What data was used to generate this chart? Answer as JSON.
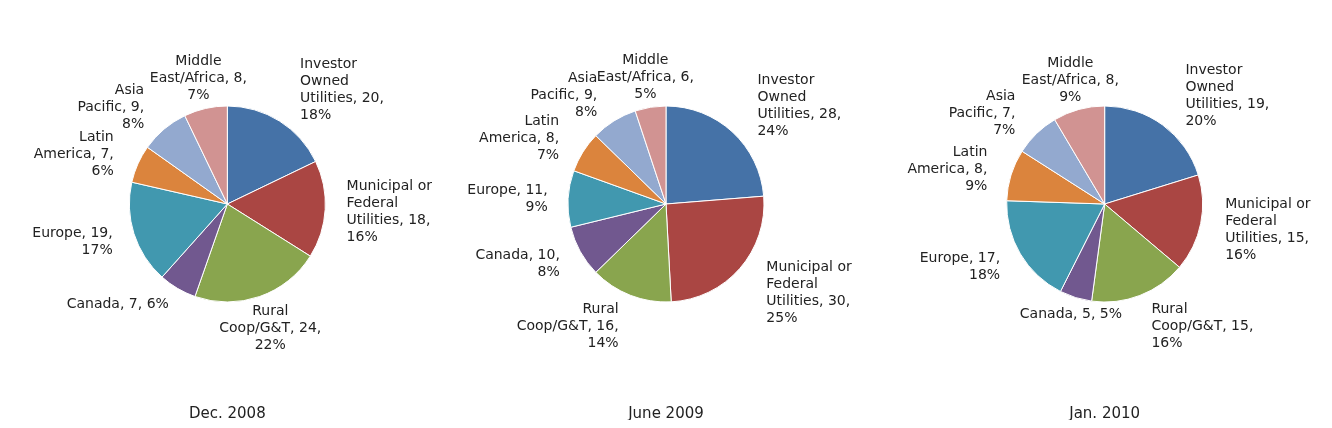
{
  "chart_data": [
    {
      "type": "pie",
      "title": "Dec. 2008",
      "categories": [
        "Investor Owned Utilities",
        "Municipal or Federal Utilities",
        "Rural Coop/G&T",
        "Canada",
        "Europe",
        "Latin America",
        "Asia Pacific",
        "Middle East/Africa"
      ],
      "values": [
        20,
        18,
        24,
        7,
        19,
        7,
        9,
        8
      ],
      "value_labels": [
        "20, 18%",
        "18, 16%",
        "24, 22%",
        "7, 6%",
        "19, 17%",
        "7, 6%",
        "9, 8%",
        "8, 7%"
      ],
      "colors": [
        "#4572a7",
        "#aa4643",
        "#89a54e",
        "#71588f",
        "#4198af",
        "#db843d",
        "#93a9cf",
        "#d19392"
      ]
    },
    {
      "type": "pie",
      "title": "June 2009",
      "categories": [
        "Investor Owned Utilities",
        "Municipal or Federal Utilities",
        "Rural Coop/G&T",
        "Canada",
        "Europe",
        "Latin America",
        "Asia Pacific",
        "Middle East/Africa"
      ],
      "values": [
        28,
        30,
        16,
        10,
        11,
        8,
        9,
        6
      ],
      "value_labels": [
        "28, 24%",
        "30, 25%",
        "16, 14%",
        "10, 8%",
        "11, 9%",
        "8, 7%",
        "9, 8%",
        "6, 5%"
      ],
      "colors": [
        "#4572a7",
        "#aa4643",
        "#89a54e",
        "#71588f",
        "#4198af",
        "#db843d",
        "#93a9cf",
        "#d19392"
      ]
    },
    {
      "type": "pie",
      "title": "Jan. 2010",
      "categories": [
        "Investor Owned Utilities",
        "Municipal or Federal Utilities",
        "Rural Coop/G&T",
        "Canada",
        "Europe",
        "Latin America",
        "Asia Pacific",
        "Middle East/Africa"
      ],
      "values": [
        19,
        15,
        15,
        5,
        17,
        8,
        7,
        8
      ],
      "value_labels": [
        "19, 20%",
        "15, 16%",
        "15, 16%",
        "5, 5%",
        "17, 18%",
        "8, 9%",
        "7, 7%",
        "8, 9%"
      ],
      "colors": [
        "#4572a7",
        "#aa4643",
        "#89a54e",
        "#71588f",
        "#4198af",
        "#db843d",
        "#93a9cf",
        "#d19392"
      ]
    }
  ]
}
